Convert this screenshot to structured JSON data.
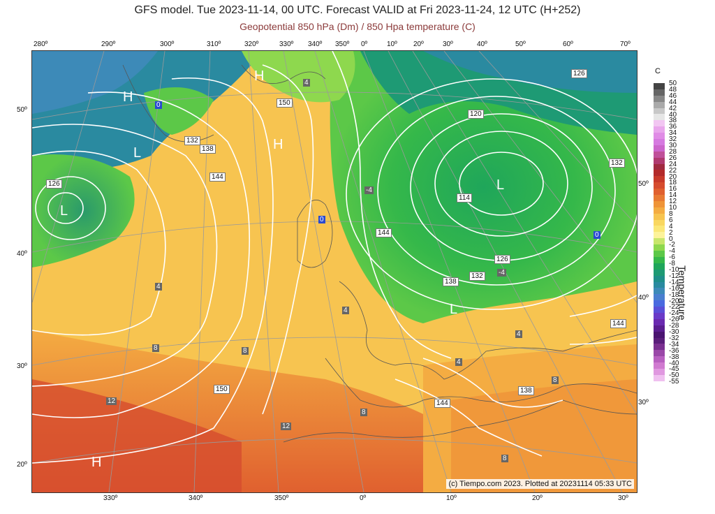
{
  "header": {
    "title": "GFS model. Tue 2023-11-14, 00 UTC. Forecast VALID at Fri 2023-11-24, 12 UTC (H+252)",
    "subtitle": "Geopotential 850 hPa (Dm) / 850 Hpa temperature (C)"
  },
  "top_lon_labels": [
    "280º",
    "290º",
    "300º",
    "310º",
    "320º",
    "330º",
    "340º",
    "350º",
    "0º",
    "10º",
    "20º",
    "30º",
    "40º",
    "50º",
    "60º",
    "70º"
  ],
  "bottom_lon_labels": [
    "330º",
    "340º",
    "350º",
    "0º",
    "10º",
    "20º",
    "30º"
  ],
  "left_lat_labels": [
    "50º",
    "40º",
    "30º",
    "20º"
  ],
  "right_lat_labels": [
    "50º",
    "40º",
    "30º"
  ],
  "pressure_centers": [
    "H",
    "H",
    "H",
    "H",
    "H",
    "L",
    "L",
    "L",
    "L"
  ],
  "contour_labels": [
    "126",
    "132",
    "138",
    "144",
    "150",
    "150",
    "144",
    "138",
    "132",
    "126",
    "120",
    "114",
    "126",
    "132",
    "138",
    "144",
    "150",
    "144",
    "138",
    "132",
    "126",
    "144"
  ],
  "temp_labels": [
    "0",
    "0",
    "0",
    "4",
    "4",
    "4",
    "8",
    "8",
    "8",
    "8",
    "8",
    "8",
    "12",
    "12",
    "12",
    "4",
    "4",
    "4",
    "4",
    "-4",
    "-4",
    "-4",
    "4"
  ],
  "colorbar": {
    "unit": "C",
    "title": "Temperature",
    "labels": [
      "50",
      "48",
      "46",
      "44",
      "42",
      "40",
      "38",
      "36",
      "34",
      "32",
      "30",
      "28",
      "26",
      "24",
      "22",
      "20",
      "18",
      "16",
      "14",
      "12",
      "10",
      "8",
      "6",
      "4",
      "2",
      "0",
      "-2",
      "-4",
      "-6",
      "-8",
      "-10",
      "-12",
      "-14",
      "-16",
      "-18",
      "-20",
      "-22",
      "-24",
      "-26",
      "-28",
      "-30",
      "-32",
      "-34",
      "-36",
      "-38",
      "-40",
      "-45",
      "-50",
      "-55"
    ],
    "colors": [
      "#444444",
      "#666666",
      "#888888",
      "#aaaaaa",
      "#c8c8c8",
      "#e6e6e6",
      "#f2c6f2",
      "#e9a6ec",
      "#e08ce6",
      "#d67ae0",
      "#cc66cc",
      "#c0509a",
      "#b03a70",
      "#a02a40",
      "#b32a2a",
      "#c83a2a",
      "#d64c2e",
      "#e0602f",
      "#e87a33",
      "#ef9438",
      "#f4ac42",
      "#f7c450",
      "#f9d760",
      "#fbe777",
      "#fdf39a",
      "#c8e66b",
      "#8ed84e",
      "#5cc848",
      "#35b84a",
      "#1fa65a",
      "#1e9a74",
      "#1f8e8a",
      "#2a8aa0",
      "#3d8ab8",
      "#4a7fd0",
      "#4a6ae0",
      "#5a4fd8",
      "#6a3ac8",
      "#6a2ab0",
      "#5a1e90",
      "#4a1470",
      "#5a1e7a",
      "#7a3090",
      "#9a48a8",
      "#b860c0",
      "#d07ad0",
      "#e098e0",
      "#f0c0f0",
      "#ffffff"
    ]
  },
  "credit": "(c) Tiempo.com 2023. Plotted at 20231114 05:33 UTC"
}
